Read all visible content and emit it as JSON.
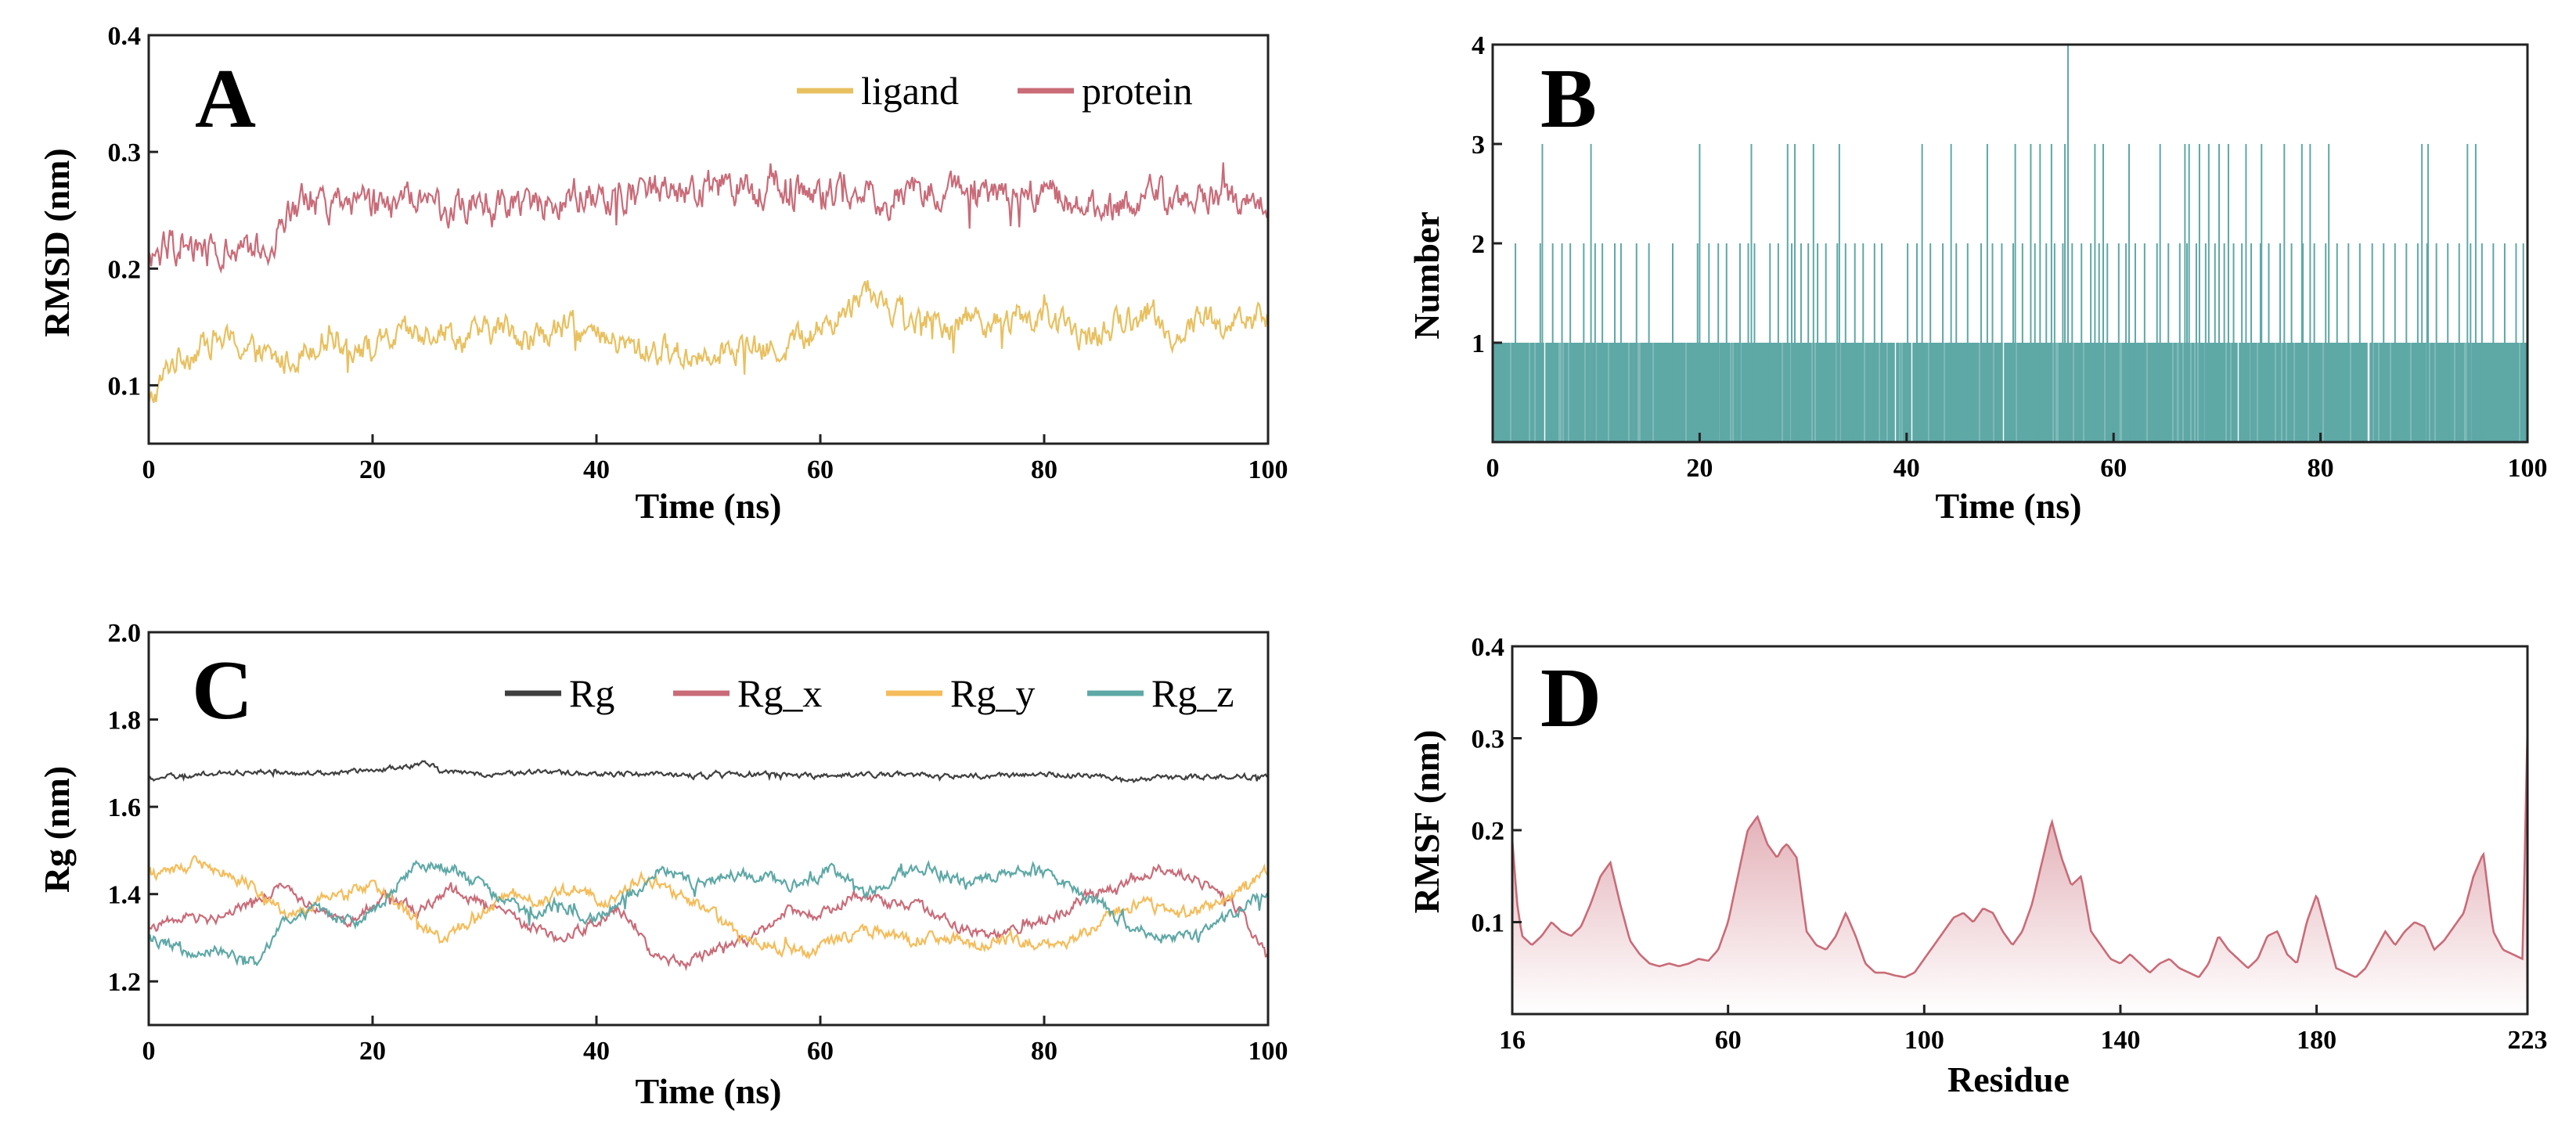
{
  "colors": {
    "ligand": "#e8c060",
    "protein": "#c96b78",
    "hbond": "#5ea8a6",
    "rg": "#3f3f3f",
    "rg_x": "#c96b78",
    "rg_y": "#f4bc5a",
    "rg_z": "#5ea8a6",
    "rmsf": "#c96b78"
  },
  "chart_data": [
    {
      "panel": "A",
      "type": "line",
      "xlabel": "Time (ns)",
      "ylabel": "RMSD (nm)",
      "xlim": [
        0,
        100
      ],
      "ylim": [
        0.05,
        0.4
      ],
      "xticks": [
        "0",
        "20",
        "40",
        "60",
        "80",
        "100"
      ],
      "yticks": [
        "0.1",
        "0.2",
        "0.3",
        "0.4"
      ],
      "legend_position": "top-right",
      "legend": [
        "ligand",
        "protein"
      ],
      "series": [
        {
          "name": "ligand",
          "color_key": "ligand",
          "noise": 0.012,
          "x": [
            0,
            1,
            2,
            4,
            6,
            8,
            10,
            12,
            14,
            16,
            18,
            20,
            22,
            24,
            26,
            28,
            30,
            32,
            34,
            36,
            38,
            40,
            42,
            44,
            46,
            48,
            50,
            52,
            54,
            56,
            58,
            60,
            62,
            64,
            66,
            68,
            70,
            72,
            74,
            76,
            78,
            80,
            82,
            84,
            86,
            88,
            90,
            92,
            94,
            96,
            98,
            100
          ],
          "y": [
            0.08,
            0.1,
            0.12,
            0.13,
            0.14,
            0.135,
            0.125,
            0.12,
            0.13,
            0.145,
            0.135,
            0.13,
            0.14,
            0.145,
            0.15,
            0.14,
            0.145,
            0.15,
            0.14,
            0.145,
            0.15,
            0.14,
            0.135,
            0.13,
            0.13,
            0.125,
            0.13,
            0.135,
            0.13,
            0.13,
            0.14,
            0.15,
            0.16,
            0.185,
            0.17,
            0.155,
            0.15,
            0.155,
            0.16,
            0.15,
            0.16,
            0.155,
            0.15,
            0.14,
            0.15,
            0.16,
            0.155,
            0.14,
            0.16,
            0.15,
            0.155,
            0.16
          ]
        },
        {
          "name": "protein",
          "color_key": "protein",
          "noise": 0.014,
          "x": [
            0,
            2,
            4,
            6,
            8,
            10,
            11,
            12,
            13,
            14,
            16,
            18,
            20,
            22,
            24,
            26,
            28,
            30,
            32,
            34,
            36,
            38,
            40,
            42,
            44,
            46,
            48,
            50,
            52,
            54,
            56,
            58,
            60,
            62,
            64,
            66,
            68,
            70,
            72,
            74,
            76,
            78,
            80,
            82,
            84,
            86,
            88,
            90,
            92,
            94,
            96,
            98,
            100
          ],
          "y": [
            0.21,
            0.22,
            0.215,
            0.215,
            0.21,
            0.215,
            0.22,
            0.24,
            0.255,
            0.26,
            0.255,
            0.26,
            0.255,
            0.255,
            0.26,
            0.25,
            0.255,
            0.26,
            0.255,
            0.26,
            0.255,
            0.265,
            0.26,
            0.265,
            0.265,
            0.27,
            0.265,
            0.27,
            0.27,
            0.265,
            0.27,
            0.265,
            0.26,
            0.265,
            0.265,
            0.26,
            0.265,
            0.27,
            0.265,
            0.27,
            0.265,
            0.26,
            0.265,
            0.26,
            0.255,
            0.25,
            0.26,
            0.265,
            0.255,
            0.26,
            0.265,
            0.26,
            0.25
          ]
        }
      ]
    },
    {
      "panel": "B",
      "type": "bar",
      "xlabel": "Time (ns)",
      "ylabel": "Number",
      "xlim": [
        0,
        100
      ],
      "ylim": [
        0,
        4
      ],
      "xticks": [
        "0",
        "20",
        "40",
        "60",
        "80",
        "100"
      ],
      "yticks": [
        "1",
        "2",
        "3",
        "4"
      ],
      "color_key": "hbond",
      "ones_density": 0.92,
      "twos_x": [
        2.2,
        4.6,
        5.8,
        6.7,
        7.5,
        8.8,
        9.9,
        10.6,
        11.8,
        12.4,
        13.9,
        15.1,
        17.4,
        19.8,
        20.9,
        21.8,
        22.6,
        23.9,
        24.7,
        25.3,
        26.8,
        27.6,
        28.9,
        29.8,
        30.5,
        31.4,
        32.2,
        33.3,
        34.1,
        35.0,
        35.8,
        36.9,
        37.6,
        40.1,
        41.0,
        42.3,
        43.5,
        44.8,
        45.9,
        47.2,
        48.3,
        49.2,
        50.3,
        51.2,
        52.4,
        53.5,
        54.3,
        55.1,
        56.0,
        56.9,
        57.8,
        58.6,
        59.4,
        60.5,
        61.2,
        62.1,
        63.0,
        64.2,
        65.3,
        66.4,
        67.1,
        68.0,
        68.9,
        69.8,
        70.7,
        71.6,
        72.4,
        73.3,
        74.2,
        75.0,
        76.1,
        77.2,
        78.3,
        79.4,
        80.5,
        81.6,
        82.7,
        83.8,
        85.0,
        86.1,
        87.2,
        88.3,
        89.4,
        90.3,
        91.2,
        92.3,
        93.4,
        94.5,
        95.6,
        96.7,
        97.8,
        98.9,
        99.6
      ],
      "threes_x": [
        4.8,
        9.5,
        20.0,
        25.0,
        28.5,
        29.2,
        31.0,
        33.5,
        41.5,
        44.3,
        47.8,
        50.5,
        52.0,
        52.9,
        54.0,
        55.3,
        58.2,
        59.0,
        61.5,
        64.5,
        66.9,
        67.3,
        68.3,
        69.2,
        70.2,
        71.1,
        72.8,
        74.3,
        76.5,
        78.2,
        79.0,
        80.8,
        89.8,
        90.4,
        94.2,
        95.0
      ],
      "fours_x": [
        55.6
      ]
    },
    {
      "panel": "C",
      "type": "line",
      "xlabel": "Time (ns)",
      "ylabel": "Rg (nm)",
      "xlim": [
        0,
        100
      ],
      "ylim": [
        1.1,
        2.0
      ],
      "xticks": [
        "0",
        "20",
        "40",
        "60",
        "80",
        "100"
      ],
      "yticks": [
        "1.2",
        "1.4",
        "1.6",
        "1.8",
        "2.0"
      ],
      "legend_position": "top-right",
      "legend": [
        "Rg",
        "Rg_x",
        "Rg_y",
        "Rg_z"
      ],
      "series": [
        {
          "name": "Rg",
          "color_key": "rg",
          "noise": 0.006,
          "x": [
            0,
            5,
            10,
            15,
            20,
            22,
            24,
            25,
            26,
            30,
            35,
            40,
            45,
            50,
            55,
            60,
            65,
            70,
            75,
            80,
            85,
            88,
            90,
            95,
            100
          ],
          "y": [
            1.665,
            1.675,
            1.68,
            1.675,
            1.685,
            1.69,
            1.695,
            1.7,
            1.68,
            1.675,
            1.68,
            1.675,
            1.675,
            1.67,
            1.675,
            1.67,
            1.675,
            1.675,
            1.67,
            1.675,
            1.67,
            1.66,
            1.665,
            1.67,
            1.67
          ]
        },
        {
          "name": "Rg_x",
          "color_key": "rg_x",
          "noise": 0.012,
          "x": [
            0,
            3,
            6,
            9,
            12,
            15,
            18,
            21,
            24,
            27,
            30,
            33,
            36,
            39,
            42,
            45,
            48,
            51,
            54,
            57,
            60,
            63,
            66,
            69,
            72,
            75,
            78,
            81,
            84,
            87,
            90,
            93,
            96,
            98,
            100
          ],
          "y": [
            1.32,
            1.35,
            1.34,
            1.38,
            1.42,
            1.36,
            1.33,
            1.4,
            1.36,
            1.41,
            1.38,
            1.34,
            1.3,
            1.32,
            1.37,
            1.26,
            1.24,
            1.28,
            1.3,
            1.36,
            1.35,
            1.4,
            1.38,
            1.37,
            1.33,
            1.3,
            1.32,
            1.35,
            1.4,
            1.42,
            1.46,
            1.44,
            1.4,
            1.34,
            1.25
          ]
        },
        {
          "name": "Rg_y",
          "color_key": "rg_y",
          "noise": 0.014,
          "x": [
            0,
            3,
            5,
            8,
            11,
            13,
            16,
            20,
            23,
            26,
            29,
            32,
            35,
            38,
            41,
            44,
            47,
            50,
            53,
            56,
            59,
            62,
            65,
            68,
            71,
            74,
            77,
            80,
            83,
            86,
            89,
            92,
            95,
            98,
            100
          ],
          "y": [
            1.44,
            1.46,
            1.47,
            1.44,
            1.38,
            1.35,
            1.4,
            1.42,
            1.36,
            1.3,
            1.34,
            1.4,
            1.38,
            1.42,
            1.38,
            1.44,
            1.4,
            1.36,
            1.3,
            1.28,
            1.26,
            1.3,
            1.32,
            1.29,
            1.3,
            1.28,
            1.3,
            1.28,
            1.3,
            1.36,
            1.38,
            1.35,
            1.37,
            1.42,
            1.45
          ]
        },
        {
          "name": "Rg_z",
          "color_key": "rg_z",
          "noise": 0.014,
          "x": [
            0,
            2,
            4,
            6,
            8,
            10,
            12,
            15,
            18,
            21,
            23,
            25,
            28,
            31,
            34,
            37,
            40,
            43,
            46,
            49,
            52,
            55,
            58,
            61,
            64,
            67,
            70,
            73,
            76,
            79,
            82,
            85,
            88,
            91,
            94,
            97,
            100
          ],
          "y": [
            1.3,
            1.28,
            1.26,
            1.27,
            1.25,
            1.24,
            1.34,
            1.37,
            1.33,
            1.38,
            1.45,
            1.47,
            1.44,
            1.4,
            1.36,
            1.38,
            1.34,
            1.4,
            1.46,
            1.42,
            1.45,
            1.44,
            1.42,
            1.46,
            1.4,
            1.44,
            1.46,
            1.42,
            1.45,
            1.46,
            1.42,
            1.38,
            1.32,
            1.3,
            1.3,
            1.36,
            1.4
          ]
        }
      ]
    },
    {
      "panel": "D",
      "type": "area",
      "xlabel": "Residue",
      "ylabel": "RMSF (nm)",
      "xlim": [
        16,
        223
      ],
      "ylim": [
        0.0,
        0.4
      ],
      "xticks": [
        "16",
        "60",
        "100",
        "140",
        "180",
        "223"
      ],
      "yticks": [
        "0.1",
        "0.2",
        "0.3",
        "0.4"
      ],
      "color_key": "rmsf",
      "x": [
        16,
        17,
        18,
        20,
        22,
        24,
        26,
        28,
        30,
        32,
        34,
        36,
        38,
        40,
        42,
        44,
        46,
        48,
        50,
        52,
        54,
        56,
        58,
        60,
        62,
        64,
        66,
        68,
        70,
        71,
        72,
        74,
        76,
        78,
        80,
        82,
        84,
        86,
        88,
        90,
        92,
        94,
        96,
        98,
        100,
        102,
        104,
        106,
        108,
        110,
        112,
        114,
        116,
        118,
        120,
        122,
        124,
        126,
        128,
        130,
        132,
        134,
        136,
        138,
        140,
        142,
        144,
        146,
        148,
        150,
        152,
        154,
        156,
        158,
        160,
        162,
        164,
        166,
        168,
        170,
        172,
        174,
        176,
        178,
        180,
        182,
        184,
        186,
        188,
        190,
        192,
        194,
        196,
        198,
        200,
        202,
        204,
        206,
        208,
        210,
        212,
        214,
        216,
        218,
        220,
        222,
        223
      ],
      "y": [
        0.19,
        0.12,
        0.085,
        0.075,
        0.085,
        0.1,
        0.09,
        0.085,
        0.095,
        0.12,
        0.15,
        0.165,
        0.12,
        0.08,
        0.065,
        0.055,
        0.052,
        0.055,
        0.052,
        0.055,
        0.06,
        0.058,
        0.07,
        0.1,
        0.15,
        0.2,
        0.215,
        0.185,
        0.17,
        0.18,
        0.185,
        0.17,
        0.09,
        0.075,
        0.07,
        0.085,
        0.11,
        0.085,
        0.055,
        0.045,
        0.045,
        0.042,
        0.04,
        0.045,
        0.06,
        0.075,
        0.09,
        0.105,
        0.11,
        0.1,
        0.115,
        0.11,
        0.09,
        0.075,
        0.09,
        0.12,
        0.165,
        0.21,
        0.17,
        0.14,
        0.15,
        0.09,
        0.075,
        0.06,
        0.055,
        0.065,
        0.055,
        0.045,
        0.055,
        0.06,
        0.05,
        0.045,
        0.04,
        0.055,
        0.085,
        0.07,
        0.06,
        0.05,
        0.06,
        0.085,
        0.09,
        0.065,
        0.055,
        0.1,
        0.13,
        0.09,
        0.05,
        0.045,
        0.04,
        0.05,
        0.07,
        0.09,
        0.075,
        0.09,
        0.1,
        0.095,
        0.07,
        0.08,
        0.095,
        0.11,
        0.15,
        0.175,
        0.09,
        0.07,
        0.065,
        0.06,
        0.31
      ]
    }
  ]
}
